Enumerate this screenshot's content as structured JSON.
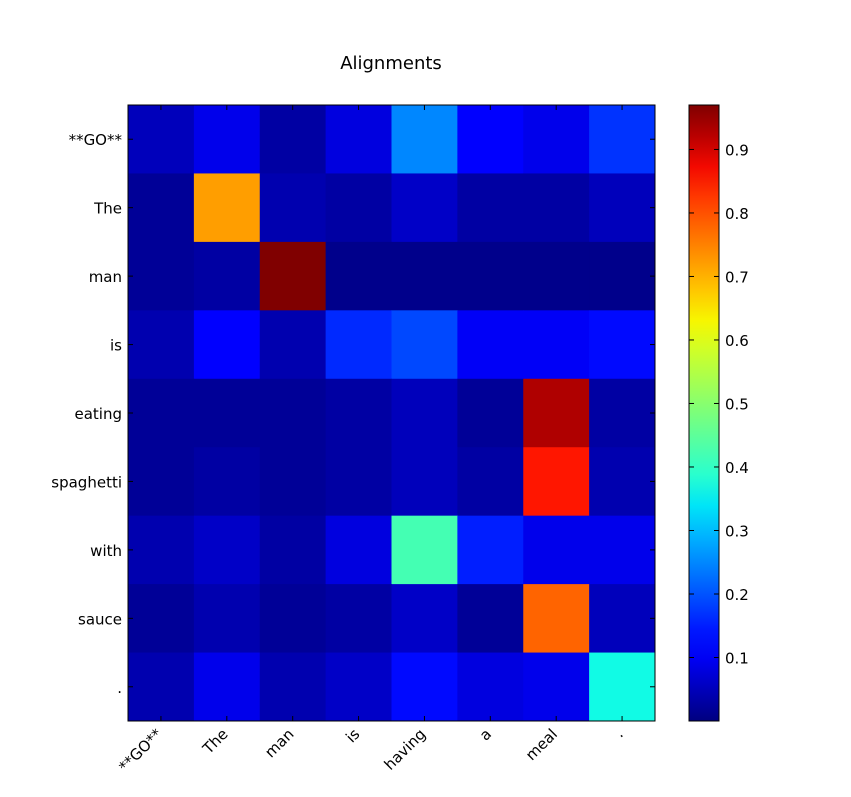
{
  "chart_data": {
    "type": "heatmap",
    "title": "Alignments",
    "xlabel": "",
    "ylabel": "",
    "x_categories": [
      "**GO**",
      "The",
      "man",
      "is",
      "having",
      "a",
      "meal",
      "."
    ],
    "y_categories": [
      "**GO**",
      "The",
      "man",
      "is",
      "eating",
      "spaghetti",
      "with",
      "sauce",
      "."
    ],
    "values": [
      [
        0.05,
        0.09,
        0.03,
        0.08,
        0.25,
        0.12,
        0.09,
        0.17
      ],
      [
        0.02,
        0.72,
        0.04,
        0.03,
        0.06,
        0.03,
        0.03,
        0.05
      ],
      [
        0.02,
        0.03,
        0.97,
        0.01,
        0.01,
        0.01,
        0.01,
        0.01
      ],
      [
        0.04,
        0.12,
        0.04,
        0.16,
        0.19,
        0.1,
        0.1,
        0.13
      ],
      [
        0.02,
        0.02,
        0.02,
        0.03,
        0.05,
        0.02,
        0.93,
        0.03
      ],
      [
        0.02,
        0.03,
        0.02,
        0.03,
        0.05,
        0.03,
        0.86,
        0.04
      ],
      [
        0.04,
        0.06,
        0.03,
        0.08,
        0.42,
        0.15,
        0.09,
        0.09
      ],
      [
        0.02,
        0.04,
        0.02,
        0.03,
        0.06,
        0.02,
        0.78,
        0.05
      ],
      [
        0.04,
        0.09,
        0.04,
        0.06,
        0.13,
        0.08,
        0.09,
        0.36
      ]
    ],
    "colormap": "jet",
    "colorbar": {
      "vmin": 0.0,
      "vmax": 0.97,
      "ticks": [
        0.1,
        0.2,
        0.3,
        0.4,
        0.5,
        0.6,
        0.7,
        0.8,
        0.9
      ],
      "tick_labels": [
        "0.1",
        "0.2",
        "0.3",
        "0.4",
        "0.5",
        "0.6",
        "0.7",
        "0.8",
        "0.9"
      ]
    },
    "x_tick_rotation": 45,
    "grid": false
  }
}
